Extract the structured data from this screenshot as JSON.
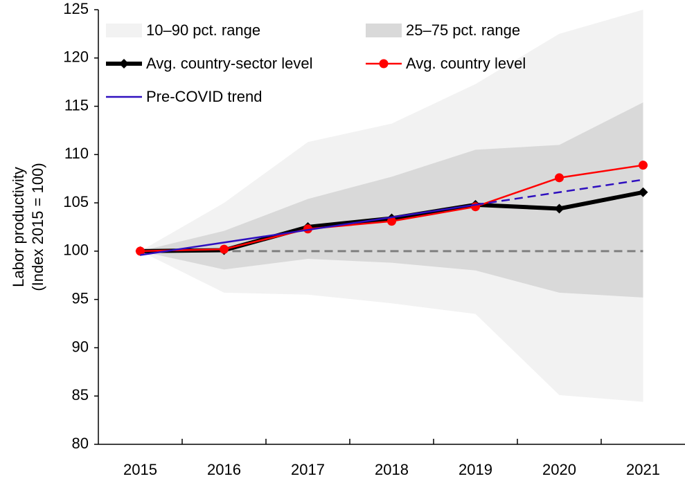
{
  "chart_data": {
    "type": "line",
    "ylabel": [
      "Labor productivity",
      "(Index 2015 = 100)"
    ],
    "categories": [
      "2015",
      "2016",
      "2017",
      "2018",
      "2019",
      "2020",
      "2021"
    ],
    "ylim": [
      80,
      125
    ],
    "yticks": [
      80,
      85,
      90,
      95,
      100,
      105,
      110,
      115,
      120,
      125
    ],
    "reference_line": {
      "value": 100,
      "color": "#7f7f7f",
      "dashed": true
    },
    "bands": [
      {
        "name": "10–90 pct. range",
        "color": "#f2f2f2",
        "lower": [
          100,
          95.7,
          95.5,
          94.6,
          93.5,
          85.1,
          84.4
        ],
        "upper": [
          100,
          105,
          111.3,
          113.2,
          117.3,
          122.5,
          125
        ]
      },
      {
        "name": "25–75 pct. range",
        "color": "#d9d9d9",
        "lower": [
          100,
          98.1,
          99.2,
          98.8,
          98.0,
          95.7,
          95.2
        ],
        "upper": [
          100,
          102.1,
          105.4,
          107.7,
          110.5,
          111,
          115.4
        ]
      }
    ],
    "series": [
      {
        "name": "Avg. country-sector level",
        "color": "#000000",
        "width": 6,
        "marker": "diamond",
        "values": [
          100,
          100.1,
          102.5,
          103.4,
          104.8,
          104.4,
          106.1
        ]
      },
      {
        "name": "Avg. country level",
        "color": "#ff0000",
        "width": 2.5,
        "marker": "circle",
        "values": [
          100,
          100.2,
          102.3,
          103.1,
          104.6,
          107.6,
          108.9
        ]
      },
      {
        "name": "Pre-COVID trend",
        "color": "#2e0fbf",
        "width": 2.5,
        "marker": "none",
        "dashed_from_index": 4,
        "values": [
          99.6,
          100.9,
          102.2,
          103.5,
          104.8,
          106.1,
          107.4
        ]
      }
    ]
  }
}
